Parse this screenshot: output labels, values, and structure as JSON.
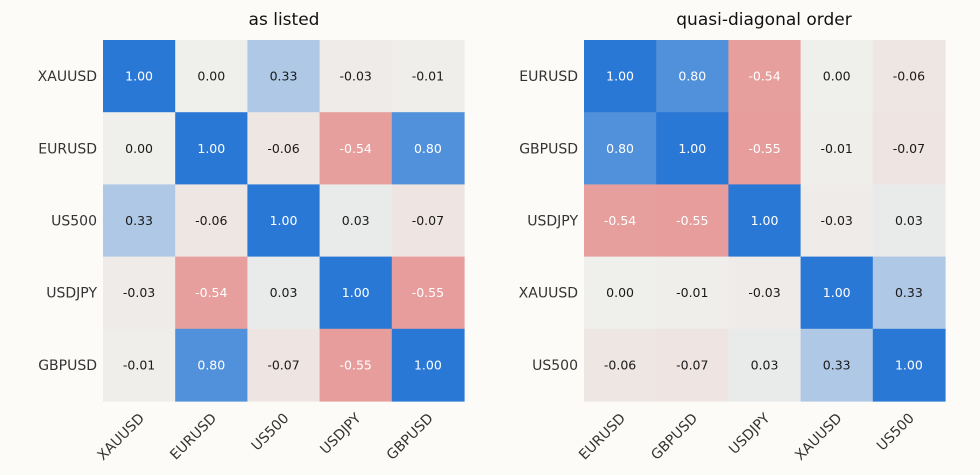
{
  "figure": {
    "background": "#fcfbf8"
  },
  "chart_data": [
    {
      "type": "heatmap",
      "title": "as listed",
      "xlabel": "",
      "ylabel": "",
      "rows": [
        "XAUUSD",
        "EURUSD",
        "US500",
        "USDJPY",
        "GBPUSD"
      ],
      "cols": [
        "XAUUSD",
        "EURUSD",
        "US500",
        "USDJPY",
        "GBPUSD"
      ],
      "value_range": [
        -1,
        1
      ],
      "values": [
        [
          1.0,
          0.0,
          0.33,
          -0.03,
          -0.01
        ],
        [
          0.0,
          1.0,
          -0.06,
          -0.54,
          0.8
        ],
        [
          0.33,
          -0.06,
          1.0,
          0.03,
          -0.07
        ],
        [
          -0.03,
          -0.54,
          0.03,
          1.0,
          -0.55
        ],
        [
          -0.01,
          0.8,
          -0.07,
          -0.55,
          1.0
        ]
      ],
      "labels": [
        [
          "1.00",
          "0.00",
          "0.33",
          "-0.03",
          "-0.01"
        ],
        [
          "0.00",
          "1.00",
          "-0.06",
          "-0.54",
          "0.80"
        ],
        [
          "0.33",
          "-0.06",
          "1.00",
          "0.03",
          "-0.07"
        ],
        [
          "-0.03",
          "-0.54",
          "0.03",
          "1.00",
          "-0.55"
        ],
        [
          "-0.01",
          "0.80",
          "-0.07",
          "-0.55",
          "1.00"
        ]
      ],
      "colorscale": {
        "negative": "#e05a5a",
        "neutral": "#efefec",
        "positive": "#2a78d6"
      },
      "grid": false
    },
    {
      "type": "heatmap",
      "title": "quasi-diagonal order",
      "xlabel": "",
      "ylabel": "",
      "rows": [
        "EURUSD",
        "GBPUSD",
        "USDJPY",
        "XAUUSD",
        "US500"
      ],
      "cols": [
        "EURUSD",
        "GBPUSD",
        "USDJPY",
        "XAUUSD",
        "US500"
      ],
      "value_range": [
        -1,
        1
      ],
      "values": [
        [
          1.0,
          0.8,
          -0.54,
          0.0,
          -0.06
        ],
        [
          0.8,
          1.0,
          -0.55,
          -0.01,
          -0.07
        ],
        [
          -0.54,
          -0.55,
          1.0,
          -0.03,
          0.03
        ],
        [
          0.0,
          -0.01,
          -0.03,
          1.0,
          0.33
        ],
        [
          -0.06,
          -0.07,
          0.03,
          0.33,
          1.0
        ]
      ],
      "labels": [
        [
          "1.00",
          "0.80",
          "-0.54",
          "0.00",
          "-0.06"
        ],
        [
          "0.80",
          "1.00",
          "-0.55",
          "-0.01",
          "-0.07"
        ],
        [
          "-0.54",
          "-0.55",
          "1.00",
          "-0.03",
          "0.03"
        ],
        [
          "0.00",
          "-0.01",
          "-0.03",
          "1.00",
          "0.33"
        ],
        [
          "-0.06",
          "-0.07",
          "0.03",
          "0.33",
          "1.00"
        ]
      ],
      "colorscale": {
        "negative": "#e05a5a",
        "neutral": "#efefec",
        "positive": "#2a78d6"
      },
      "grid": false
    }
  ]
}
